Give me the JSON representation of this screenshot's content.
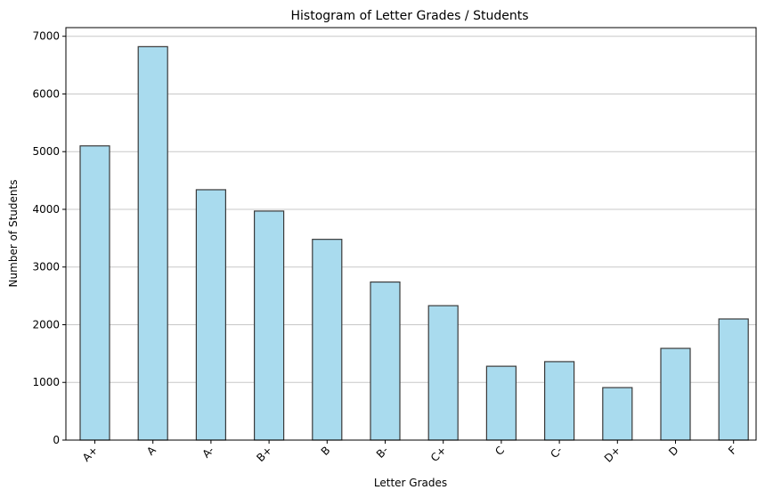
{
  "chart_data": {
    "type": "bar",
    "title": "Histogram of Letter Grades / Students",
    "xlabel": "Letter Grades",
    "ylabel": "Number of Students",
    "categories": [
      "A+",
      "A",
      "A-",
      "B+",
      "B",
      "B-",
      "C+",
      "C",
      "C-",
      "D+",
      "D",
      "F"
    ],
    "values": [
      5100,
      6820,
      4340,
      3970,
      3480,
      2740,
      2330,
      1280,
      1360,
      910,
      1590,
      2100
    ],
    "ylim": [
      0,
      7150
    ],
    "yticks": [
      0,
      1000,
      2000,
      3000,
      4000,
      5000,
      6000,
      7000
    ],
    "grid": "y",
    "colors": {
      "bar_fill": "#a9dbee",
      "bar_edge": "#3a3a3a",
      "grid": "#c8c8c8"
    }
  }
}
